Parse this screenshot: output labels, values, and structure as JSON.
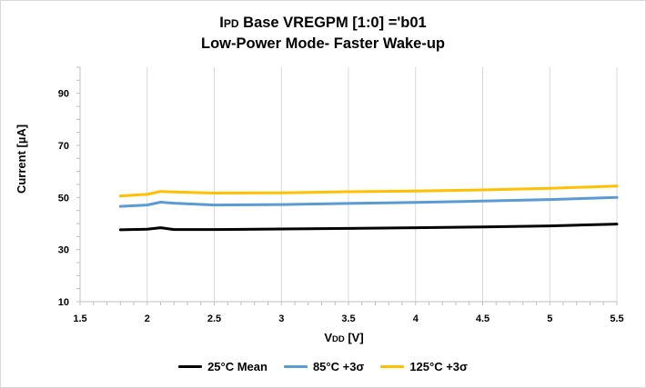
{
  "chart_data": {
    "type": "line",
    "title_line1_prefix": "I",
    "title_line1_sub": "PD",
    "title_line1_rest": " Base VREGPM [1:0] ='b01",
    "title_line2": "Low-Power Mode- Faster Wake-up",
    "xlabel_main": "V",
    "xlabel_sub": "DD",
    "xlabel_rest": " [V]",
    "ylabel": "Current [µA]",
    "xlim": [
      1.5,
      5.5
    ],
    "ylim": [
      10,
      100
    ],
    "x_ticks": [
      "1.5",
      "2",
      "2.5",
      "3",
      "3.5",
      "4",
      "4.5",
      "5",
      "5.5"
    ],
    "x_tick_values": [
      1.5,
      2,
      2.5,
      3,
      3.5,
      4,
      4.5,
      5,
      5.5
    ],
    "y_ticks": [
      "10",
      "30",
      "50",
      "70",
      "90"
    ],
    "y_tick_values": [
      10,
      30,
      50,
      70,
      90
    ],
    "grid": "vertical",
    "legend_position": "bottom",
    "series": [
      {
        "name": "25°C Mean",
        "color": "#000000",
        "x": [
          1.8,
          2.0,
          2.1,
          2.2,
          2.5,
          3.0,
          3.5,
          4.0,
          4.5,
          5.0,
          5.5
        ],
        "y": [
          37.6,
          37.8,
          38.4,
          37.7,
          37.7,
          37.9,
          38.1,
          38.4,
          38.7,
          39.1,
          39.8
        ]
      },
      {
        "name": "85°C +3σ",
        "color": "#5b9bd5",
        "x": [
          1.8,
          2.0,
          2.1,
          2.2,
          2.5,
          3.0,
          3.5,
          4.0,
          4.5,
          5.0,
          5.5
        ],
        "y": [
          46.6,
          47.1,
          48.2,
          47.8,
          47.1,
          47.3,
          47.7,
          48.1,
          48.6,
          49.2,
          50.0
        ]
      },
      {
        "name": "125°C +3σ",
        "color": "#ffc000",
        "x": [
          1.8,
          2.0,
          2.1,
          2.2,
          2.5,
          3.0,
          3.5,
          4.0,
          4.5,
          5.0,
          5.5
        ],
        "y": [
          50.6,
          51.2,
          52.3,
          52.1,
          51.7,
          51.8,
          52.2,
          52.5,
          52.9,
          53.5,
          54.4
        ]
      }
    ]
  }
}
